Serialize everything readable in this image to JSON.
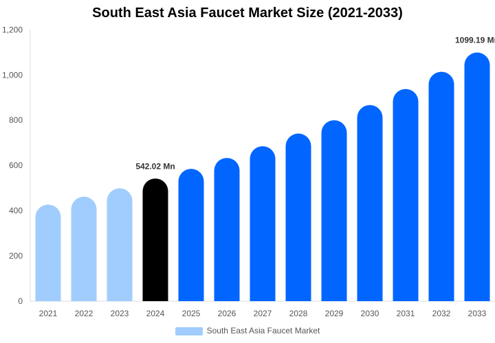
{
  "chart_data": {
    "type": "bar",
    "title": "South East Asia Faucet Market Size (2021-2033)",
    "categories": [
      "2021",
      "2022",
      "2023",
      "2024",
      "2025",
      "2026",
      "2027",
      "2028",
      "2029",
      "2030",
      "2031",
      "2032",
      "2033"
    ],
    "series": [
      {
        "name": "South East Asia Faucet Market",
        "values": [
          427,
          462,
          499,
          542.02,
          585,
          633,
          685,
          741,
          800,
          867,
          938,
          1014,
          1099.19
        ]
      }
    ],
    "data_labels": [
      {
        "category": "2024",
        "text": "542.02 Mn"
      },
      {
        "category": "2033",
        "text": "1099.19 Mn"
      }
    ],
    "ylim": [
      0,
      1200
    ],
    "yticks": [
      0,
      200,
      400,
      600,
      800,
      1000,
      1200
    ],
    "ytick_labels": [
      "0",
      "200",
      "400",
      "600",
      "800",
      "1,000",
      "1,200"
    ],
    "xlabel": "",
    "ylabel": "",
    "grid": false,
    "legend_position": "bottom",
    "colors": {
      "historical": "#a0cdfd",
      "base_year": "#000000",
      "forecast": "#0066ff"
    },
    "bar_color_by_category": [
      "historical",
      "historical",
      "historical",
      "base_year",
      "forecast",
      "forecast",
      "forecast",
      "forecast",
      "forecast",
      "forecast",
      "forecast",
      "forecast",
      "forecast"
    ]
  }
}
